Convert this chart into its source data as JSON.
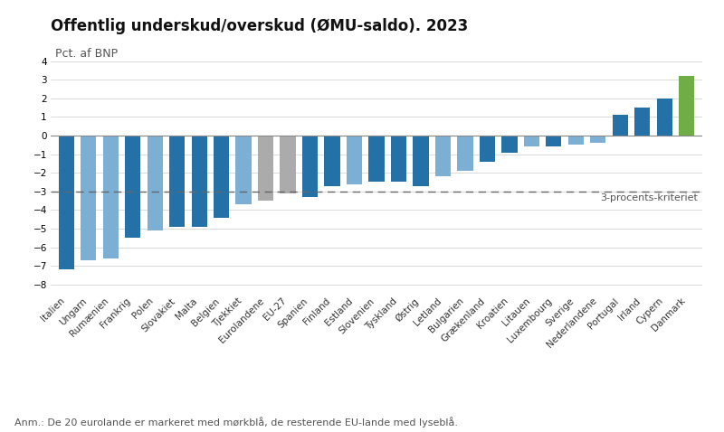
{
  "title": "Offentlig underskud/overskud (ØMU-saldo). 2023",
  "ylabel": "Pct. af BNP",
  "annotation": "3-procents-kriteriet",
  "footnote": "Anm.: De 20 eurolande er markeret med mørkblå, de resterende EU-lande med lyseblå.",
  "dashed_line": -3,
  "ylim": [
    -8.5,
    4.5
  ],
  "yticks": [
    -8,
    -7,
    -6,
    -5,
    -4,
    -3,
    -2,
    -1,
    0,
    1,
    2,
    3,
    4
  ],
  "categories": [
    "Italien",
    "Ungarn",
    "Rumænien",
    "Frankrig",
    "Polen",
    "Slovakiet",
    "Malta",
    "Belgien",
    "Tjekkiet",
    "Eurolandene",
    "EU-27",
    "Spanien",
    "Finland",
    "Estland",
    "Slovenien",
    "Tyskland",
    "Østrig",
    "Letland",
    "Bulgarien",
    "Grækenland",
    "Kroatien",
    "Litauen",
    "Luxembourg",
    "Sverige",
    "Nederlandene",
    "Portugal",
    "Irland",
    "Cypern",
    "Danmark"
  ],
  "values": [
    -7.2,
    -6.7,
    -6.6,
    -5.5,
    -5.1,
    -4.9,
    -4.9,
    -4.4,
    -3.7,
    -3.5,
    -3.1,
    -3.3,
    -2.7,
    -2.6,
    -2.5,
    -2.5,
    -2.7,
    -2.2,
    -1.9,
    -1.4,
    -0.9,
    -0.6,
    -0.6,
    -0.5,
    -0.4,
    1.1,
    1.5,
    2.0,
    3.2
  ],
  "colors": [
    "#2471A8",
    "#7BAFD4",
    "#7BAFD4",
    "#2471A8",
    "#7BAFD4",
    "#2471A8",
    "#2471A8",
    "#2471A8",
    "#7BAFD4",
    "#ABABAB",
    "#ABABAB",
    "#2471A8",
    "#2471A8",
    "#7BAFD4",
    "#2471A8",
    "#2471A8",
    "#2471A8",
    "#7BAFD4",
    "#7BAFD4",
    "#2471A8",
    "#2471A8",
    "#7BAFD4",
    "#2471A8",
    "#7BAFD4",
    "#7BAFD4",
    "#2471A8",
    "#2471A8",
    "#2471A8",
    "#70AD47"
  ],
  "background_color": "#FFFFFF",
  "grid_color": "#CCCCCC",
  "zero_line_color": "#888888",
  "dashed_line_color": "#666666",
  "title_fontsize": 12,
  "ylabel_fontsize": 9,
  "tick_fontsize": 7.5,
  "annotation_fontsize": 8,
  "footnote_fontsize": 8
}
